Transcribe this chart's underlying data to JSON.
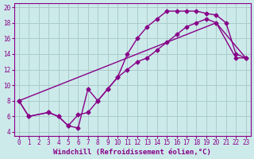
{
  "xlabel": "Windchill (Refroidissement éolien,°C)",
  "bg_color": "#cceaea",
  "line_color": "#880088",
  "grid_color": "#aacccc",
  "xlim_min": -0.5,
  "xlim_max": 23.5,
  "ylim_min": 3.5,
  "ylim_max": 20.5,
  "xticks": [
    0,
    1,
    2,
    3,
    4,
    5,
    6,
    7,
    8,
    9,
    10,
    11,
    12,
    13,
    14,
    15,
    16,
    17,
    18,
    19,
    20,
    21,
    22,
    23
  ],
  "yticks": [
    4,
    6,
    8,
    10,
    12,
    14,
    16,
    18,
    20
  ],
  "line1_x": [
    0,
    1,
    3,
    4,
    5,
    6,
    7,
    8,
    9,
    10,
    11,
    12,
    13,
    14,
    15,
    16,
    17,
    18,
    19,
    20,
    21,
    22,
    23
  ],
  "line1_y": [
    8.0,
    6.0,
    6.5,
    6.0,
    4.8,
    4.5,
    9.5,
    8.0,
    9.5,
    11.0,
    14.0,
    16.0,
    17.5,
    18.5,
    19.5,
    19.5,
    19.5,
    19.5,
    19.2,
    19.0,
    18.0,
    14.0,
    13.5
  ],
  "line2_x": [
    0,
    1,
    3,
    4,
    5,
    6,
    7,
    8,
    9,
    10,
    11,
    12,
    13,
    14,
    15,
    16,
    17,
    18,
    19,
    20,
    22,
    23
  ],
  "line2_y": [
    8.0,
    6.0,
    6.5,
    6.0,
    4.8,
    6.2,
    6.5,
    8.0,
    9.5,
    11.0,
    12.0,
    13.0,
    13.5,
    14.5,
    15.5,
    16.5,
    17.5,
    18.0,
    18.5,
    18.0,
    13.5,
    13.5
  ],
  "line3_x": [
    0,
    20,
    23
  ],
  "line3_y": [
    8.0,
    18.0,
    13.5
  ],
  "marker": "D",
  "markersize": 2.5,
  "linewidth": 1.0,
  "tick_fontsize": 5.5,
  "xlabel_fontsize": 6.5,
  "font_family": "monospace"
}
